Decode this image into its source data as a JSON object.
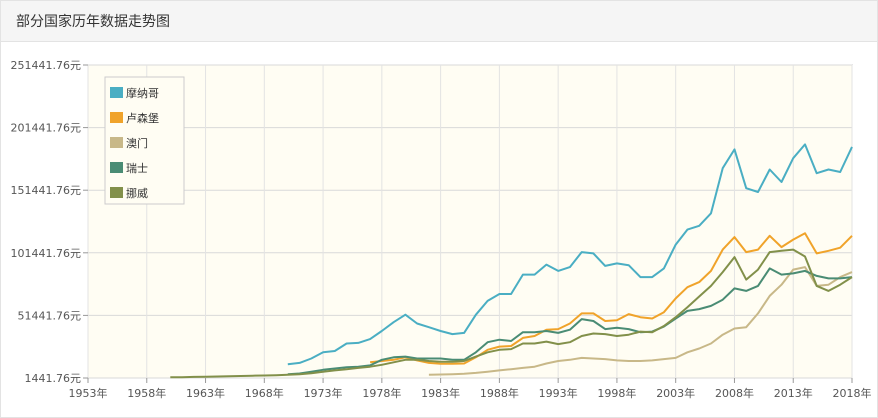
{
  "panel": {
    "title": "部分国家历年数据走势图"
  },
  "chart_data": {
    "type": "line",
    "title": "",
    "xlabel": "",
    "ylabel": "",
    "x": [
      1970,
      1971,
      1972,
      1973,
      1974,
      1975,
      1976,
      1977,
      1978,
      1979,
      1980,
      1981,
      1982,
      1983,
      1984,
      1985,
      1986,
      1987,
      1988,
      1989,
      1990,
      1991,
      1992,
      1993,
      1994,
      1995,
      1996,
      1997,
      1998,
      1999,
      2000,
      2001,
      2002,
      2003,
      2004,
      2005,
      2006,
      2007,
      2008,
      2009,
      2010,
      2011,
      2012,
      2013,
      2014,
      2015,
      2016,
      2017,
      2018
    ],
    "xlim": [
      1953,
      2018
    ],
    "xticks": [
      1953,
      1958,
      1963,
      1968,
      1973,
      1978,
      1983,
      1988,
      1993,
      1998,
      2003,
      2008,
      2013,
      2018
    ],
    "xtick_labels": [
      "1953年",
      "1958年",
      "1963年",
      "1968年",
      "1973年",
      "1978年",
      "1983年",
      "1988年",
      "1993年",
      "1998年",
      "2003年",
      "2008年",
      "2013年",
      "2018年"
    ],
    "ylim": [
      1441.76,
      251441.76
    ],
    "yticks": [
      1441.76,
      51441.76,
      101441.76,
      151441.76,
      201441.76,
      251441.76
    ],
    "ytick_labels": [
      "1441.76元",
      "51441.76元",
      "101441.76元",
      "151441.76元",
      "201441.76元",
      "251441.76元"
    ],
    "grid": true,
    "legend_position": "top-left",
    "series": [
      {
        "name": "摩纳哥",
        "color": "#4aaec3",
        "x": [
          1970,
          1971,
          1972,
          1973,
          1974,
          1975,
          1976,
          1977,
          1978,
          1979,
          1980,
          1981,
          1982,
          1983,
          1984,
          1985,
          1986,
          1987,
          1988,
          1989,
          1990,
          1991,
          1992,
          1993,
          1994,
          1995,
          1996,
          1997,
          1998,
          1999,
          2000,
          2001,
          2002,
          2003,
          2004,
          2005,
          2006,
          2007,
          2008,
          2009,
          2010,
          2011,
          2012,
          2013,
          2014,
          2015,
          2016,
          2017,
          2018
        ],
        "values": [
          12500,
          13500,
          17000,
          22000,
          23000,
          29000,
          29500,
          32500,
          39000,
          46000,
          52000,
          45000,
          42000,
          39000,
          36500,
          37500,
          52000,
          63000,
          68500,
          68500,
          84000,
          84000,
          92000,
          87000,
          90000,
          102000,
          101000,
          91000,
          93000,
          91500,
          82000,
          82000,
          89000,
          108000,
          120000,
          123000,
          133000,
          169000,
          184000,
          153000,
          150000,
          168000,
          158000,
          177000,
          188000,
          165000,
          168000,
          166000,
          186000
        ]
      },
      {
        "name": "卢森堡",
        "color": "#f0a32a",
        "x": [
          1977,
          1978,
          1979,
          1980,
          1981,
          1982,
          1983,
          1984,
          1985,
          1986,
          1987,
          1988,
          1989,
          1990,
          1991,
          1992,
          1993,
          1994,
          1995,
          1996,
          1997,
          1998,
          1999,
          2000,
          2001,
          2002,
          2003,
          2004,
          2005,
          2006,
          2007,
          2008,
          2009,
          2010,
          2011,
          2012,
          2013,
          2014,
          2015,
          2016,
          2017,
          2018
        ],
        "values": [
          14000,
          15000,
          16000,
          18000,
          15500,
          13500,
          12800,
          12800,
          13000,
          18000,
          24000,
          26500,
          27000,
          33500,
          35000,
          40000,
          40500,
          45000,
          53000,
          53000,
          47000,
          47500,
          52500,
          50000,
          49000,
          54000,
          65000,
          74000,
          78000,
          87000,
          104000,
          114000,
          102000,
          104000,
          115000,
          106000,
          112000,
          117000,
          101000,
          103000,
          105500,
          115000
        ]
      },
      {
        "name": "澳门",
        "color": "#c8b888",
        "x": [
          1982,
          1983,
          1984,
          1985,
          1986,
          1987,
          1988,
          1989,
          1990,
          1991,
          1992,
          1993,
          1994,
          1995,
          1996,
          1997,
          1998,
          1999,
          2000,
          2001,
          2002,
          2003,
          2004,
          2005,
          2006,
          2007,
          2008,
          2009,
          2010,
          2011,
          2012,
          2013,
          2014,
          2015,
          2016,
          2017,
          2018
        ],
        "values": [
          4000,
          4200,
          4500,
          4800,
          5500,
          6500,
          7500,
          8500,
          9500,
          10500,
          13000,
          15000,
          16000,
          17500,
          17000,
          16500,
          15500,
          15000,
          15000,
          15500,
          16500,
          17500,
          22000,
          25000,
          29000,
          36000,
          41000,
          42000,
          53000,
          67000,
          76000,
          88000,
          90000,
          75000,
          76000,
          82000,
          86000
        ]
      },
      {
        "name": "瑞士",
        "color": "#4a8c74",
        "x": [
          1970,
          1971,
          1972,
          1973,
          1974,
          1975,
          1976,
          1977,
          1978,
          1979,
          1980,
          1981,
          1982,
          1983,
          1984,
          1985,
          1986,
          1987,
          1988,
          1989,
          1990,
          1991,
          1992,
          1993,
          1994,
          1995,
          1996,
          1997,
          1998,
          1999,
          2000,
          2001,
          2002,
          2003,
          2004,
          2005,
          2006,
          2007,
          2008,
          2009,
          2010,
          2011,
          2012,
          2013,
          2014,
          2015,
          2016,
          2017,
          2018
        ],
        "values": [
          4400,
          5000,
          6500,
          8000,
          9000,
          10000,
          10500,
          11500,
          16000,
          18000,
          18500,
          17000,
          17000,
          17000,
          16000,
          16000,
          22000,
          30000,
          32000,
          31000,
          38000,
          38000,
          39000,
          37500,
          40000,
          48500,
          47000,
          40500,
          41500,
          40500,
          38000,
          38500,
          42500,
          49000,
          55000,
          56500,
          59000,
          64000,
          73000,
          71000,
          75000,
          89000,
          84000,
          85000,
          87000,
          83000,
          81000,
          81000,
          82000
        ]
      },
      {
        "name": "挪威",
        "color": "#82904a",
        "x": [
          1960,
          1961,
          1962,
          1963,
          1964,
          1965,
          1966,
          1967,
          1968,
          1969,
          1970,
          1971,
          1972,
          1973,
          1974,
          1975,
          1976,
          1977,
          1978,
          1979,
          1980,
          1981,
          1982,
          1983,
          1984,
          1985,
          1986,
          1987,
          1988,
          1989,
          1990,
          1991,
          1992,
          1993,
          1994,
          1995,
          1996,
          1997,
          1998,
          1999,
          2000,
          2001,
          2002,
          2003,
          2004,
          2005,
          2006,
          2007,
          2008,
          2009,
          2010,
          2011,
          2012,
          2013,
          2014,
          2015,
          2016,
          2017,
          2018
        ],
        "values": [
          2000,
          2100,
          2300,
          2450,
          2600,
          2850,
          3050,
          3250,
          3400,
          3650,
          4000,
          4500,
          5200,
          6500,
          7500,
          8500,
          9500,
          10500,
          12000,
          14000,
          16000,
          16000,
          15000,
          14500,
          14500,
          15000,
          18500,
          22000,
          24000,
          24500,
          29000,
          29000,
          30500,
          28500,
          30000,
          35000,
          37000,
          36500,
          35000,
          36000,
          38500,
          38000,
          43000,
          50000,
          58000,
          66500,
          75000,
          86000,
          98000,
          80000,
          88000,
          102000,
          103000,
          104000,
          98500,
          75000,
          71000,
          76000,
          82000
        ]
      }
    ]
  }
}
